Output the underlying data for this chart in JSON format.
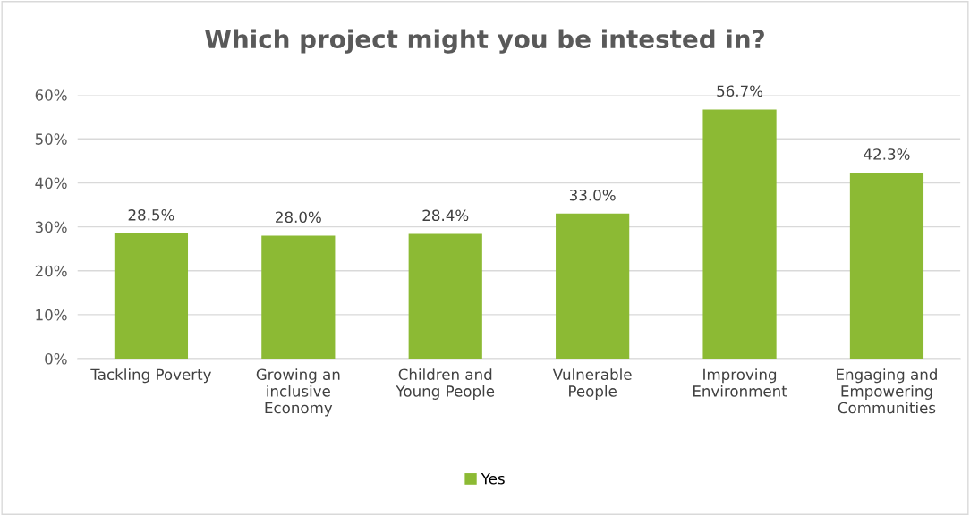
{
  "chart_data": {
    "type": "bar",
    "title": "Which project might you be intested in?",
    "categories": [
      "Tackling Poverty",
      "Growing an\ninclusive\nEconomy",
      "Children and\nYoung People",
      "Vulnerable\nPeople",
      "Improving\nEnvironment",
      "Engaging and\nEmpowering\nCommunities"
    ],
    "series": [
      {
        "name": "Yes",
        "color": "#8cba34",
        "values": [
          28.5,
          28.0,
          28.4,
          33.0,
          56.7,
          42.3
        ],
        "value_labels": [
          "28.5%",
          "28.0%",
          "28.4%",
          "33.0%",
          "56.7%",
          "42.3%"
        ]
      }
    ],
    "ylim": [
      0,
      60
    ],
    "yticks": [
      {
        "value": 0,
        "label": "0%"
      },
      {
        "value": 10,
        "label": "10%"
      },
      {
        "value": 20,
        "label": "20%"
      },
      {
        "value": 30,
        "label": "30%"
      },
      {
        "value": 40,
        "label": "40%"
      },
      {
        "value": 50,
        "label": "50%"
      },
      {
        "value": 60,
        "label": "60%"
      }
    ],
    "grid": "y",
    "legend": "bottom"
  }
}
